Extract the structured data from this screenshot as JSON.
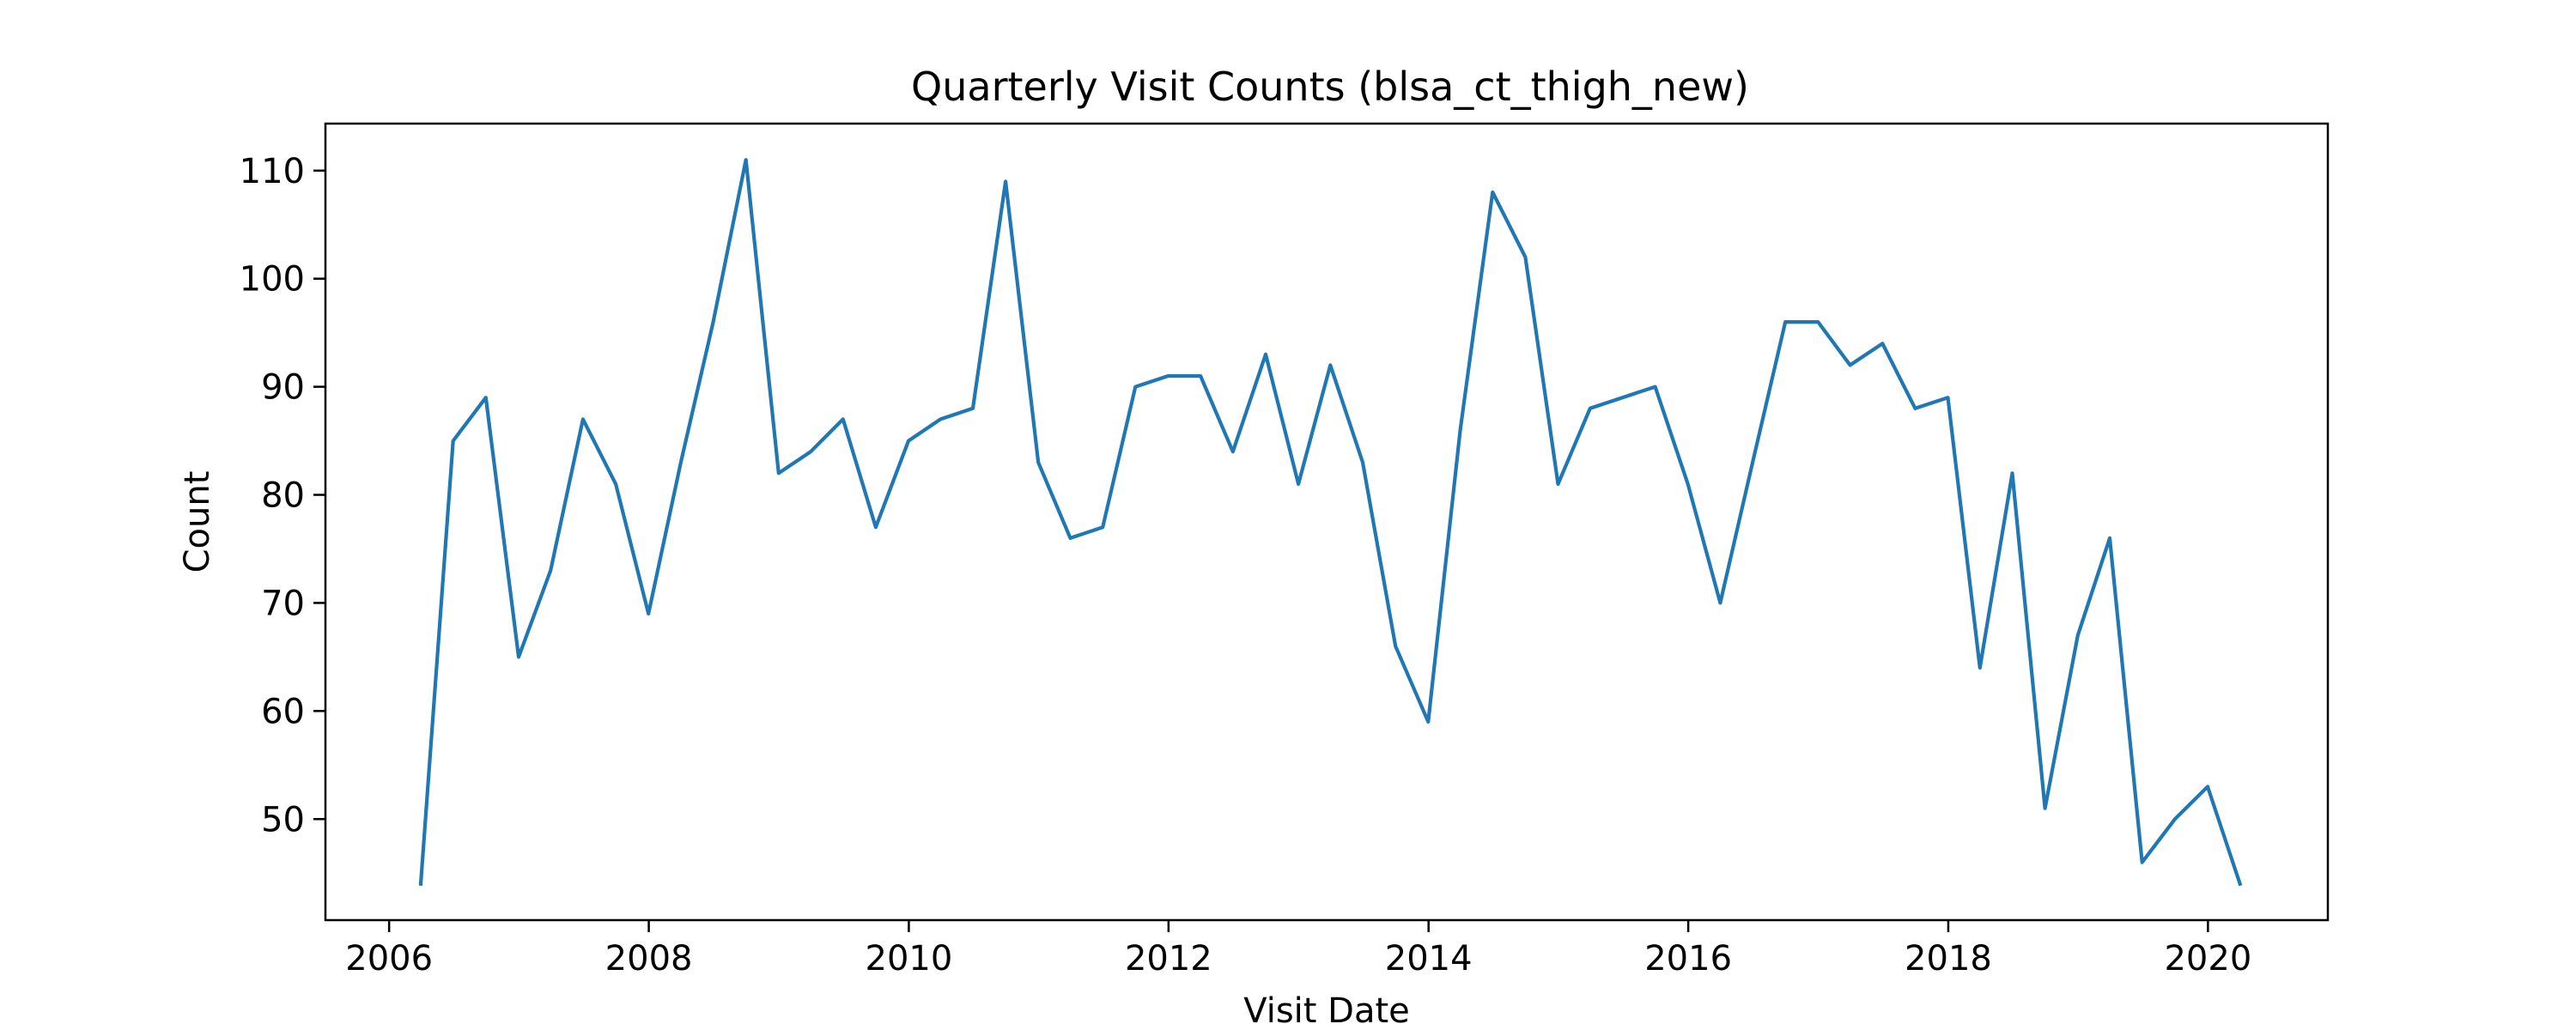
{
  "chart_data": {
    "type": "line",
    "title": "Quarterly Visit Counts (blsa_ct_thigh_new)",
    "xlabel": "Visit Date",
    "ylabel": "Count",
    "x_axis_type": "date",
    "xlim": [
      "2005-07-06",
      "2020-12-03"
    ],
    "ylim": [
      40.65,
      114.35
    ],
    "x_ticks": [
      "2006",
      "2008",
      "2010",
      "2012",
      "2014",
      "2016",
      "2018",
      "2020"
    ],
    "y_ticks": [
      50,
      60,
      70,
      80,
      90,
      100,
      110
    ],
    "grid": false,
    "legend": "none",
    "series_color": "#1f77b4",
    "series": [
      {
        "x": [
          "2006-03-31",
          "2006-06-30",
          "2006-09-30",
          "2006-12-31",
          "2007-03-31",
          "2007-06-30",
          "2007-09-30",
          "2007-12-31",
          "2008-03-31",
          "2008-06-30",
          "2008-09-30",
          "2008-12-31",
          "2009-03-31",
          "2009-06-30",
          "2009-09-30",
          "2009-12-31",
          "2010-03-31",
          "2010-06-30",
          "2010-09-30",
          "2010-12-31",
          "2011-03-31",
          "2011-06-30",
          "2011-09-30",
          "2011-12-31",
          "2012-03-31",
          "2012-06-30",
          "2012-09-30",
          "2012-12-31",
          "2013-03-31",
          "2013-06-30",
          "2013-09-30",
          "2013-12-31",
          "2014-03-31",
          "2014-06-30",
          "2014-09-30",
          "2014-12-31",
          "2015-03-31",
          "2015-06-30",
          "2015-09-30",
          "2015-12-31",
          "2016-03-31",
          "2016-06-30",
          "2016-09-30",
          "2016-12-31",
          "2017-03-31",
          "2017-06-30",
          "2017-09-30",
          "2017-12-31",
          "2018-03-31",
          "2018-06-30",
          "2018-09-30",
          "2018-12-31",
          "2019-03-31",
          "2019-06-30",
          "2019-09-30",
          "2019-12-31",
          "2020-03-31"
        ],
        "values": [
          44,
          85,
          89,
          65,
          73,
          87,
          81,
          69,
          83,
          96,
          111,
          82,
          84,
          87,
          77,
          85,
          87,
          88,
          109,
          83,
          76,
          77,
          90,
          91,
          91,
          84,
          93,
          81,
          92,
          83,
          66,
          59,
          86,
          108,
          102,
          81,
          88,
          89,
          90,
          81,
          70,
          83,
          96,
          96,
          92,
          94,
          88,
          89,
          64,
          82,
          51,
          67,
          76,
          46,
          50,
          53,
          44
        ]
      }
    ]
  }
}
